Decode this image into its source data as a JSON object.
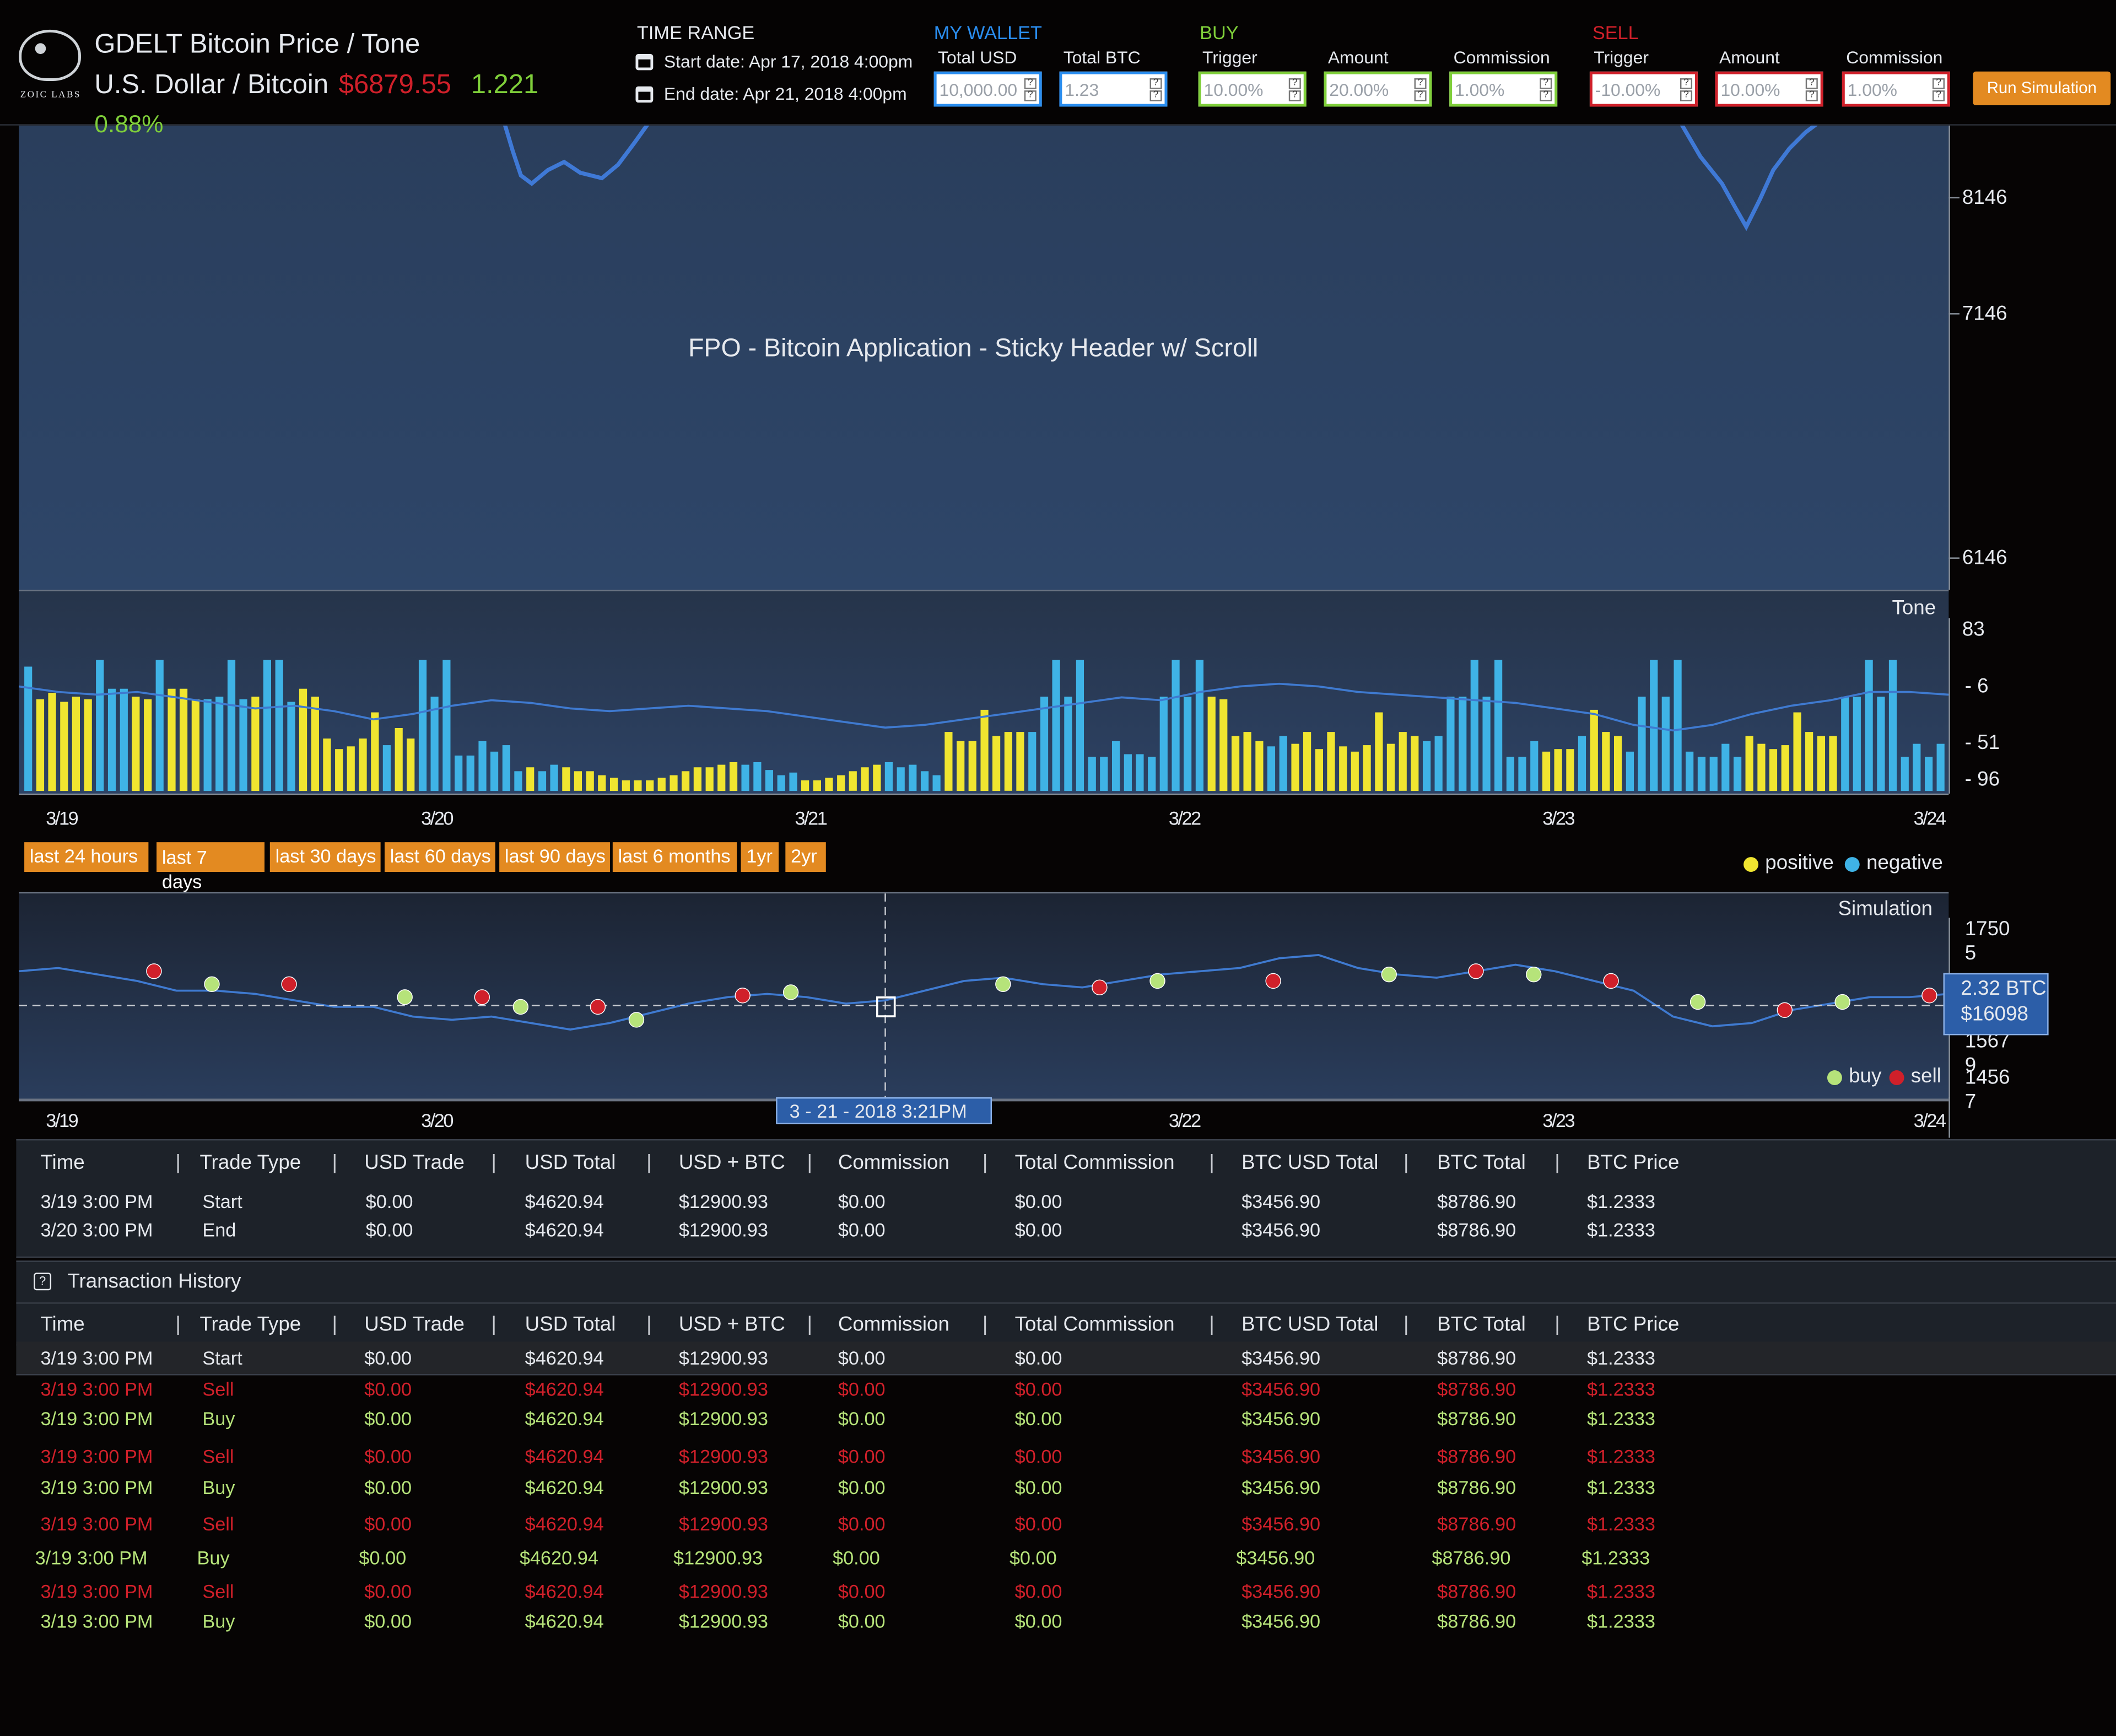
{
  "app": {
    "logo_text": "ZOIC LABS",
    "title": "GDELT Bitcoin Price / Tone",
    "pair": "U.S. Dollar / Bitcoin",
    "price": "$6879.55",
    "change": "1.221",
    "change_pct": "0.88%"
  },
  "time_range": {
    "heading": "TIME RANGE",
    "start": "Start date: Apr 17, 2018 4:00pm",
    "end": "End date:  Apr 21, 2018 4:00pm"
  },
  "wallet": {
    "heading": "MY WALLET",
    "total_usd_label": "Total USD",
    "total_usd_value": "10,000.00",
    "total_btc_label": "Total BTC",
    "total_btc_value": "1.23"
  },
  "buy": {
    "heading": "BUY",
    "trigger_label": "Trigger",
    "trigger_value": "10.00%",
    "amount_label": "Amount",
    "amount_value": "20.00%",
    "commission_label": "Commission",
    "commission_value": "1.00%"
  },
  "sell": {
    "heading": "SELL",
    "trigger_label": "Trigger",
    "trigger_value": "-10.00%",
    "amount_label": "Amount",
    "amount_value": "10.00%",
    "commission_label": "Commission",
    "commission_value": "1.00%"
  },
  "run_button": "Run Simulation",
  "colors": {
    "positive": "#f0e530",
    "negative": "#3fb3e6",
    "buy": "#b6e37a",
    "sell": "#d0202a",
    "accent_orange": "#e38a21",
    "wallet_blue": "#2a8ef0",
    "buy_green": "#7fcf3a",
    "sell_red": "#d0202a"
  },
  "price_chart": {
    "overlay_text": "FPO - Bitcoin Application - Sticky Header w/ Scroll",
    "y_ticks": [
      "8146",
      "7146",
      "6146"
    ]
  },
  "tone_chart": {
    "title": "Tone",
    "y_ticks": [
      "83",
      "- 6",
      "- 51",
      "- 96"
    ],
    "legend_positive": "positive",
    "legend_negative": "negative",
    "bars": [
      {
        "v": 0.95,
        "p": false
      },
      {
        "v": 0.7,
        "p": true
      },
      {
        "v": 0.75,
        "p": true
      },
      {
        "v": 0.68,
        "p": true
      },
      {
        "v": 0.72,
        "p": true
      },
      {
        "v": 0.7,
        "p": true
      },
      {
        "v": 1.0,
        "p": false
      },
      {
        "v": 0.78,
        "p": false
      },
      {
        "v": 0.78,
        "p": false
      },
      {
        "v": 0.72,
        "p": true
      },
      {
        "v": 0.7,
        "p": true
      },
      {
        "v": 1.0,
        "p": false
      },
      {
        "v": 0.78,
        "p": true
      },
      {
        "v": 0.78,
        "p": true
      },
      {
        "v": 0.7,
        "p": true
      },
      {
        "v": 0.7,
        "p": false
      },
      {
        "v": 0.72,
        "p": false
      },
      {
        "v": 1.0,
        "p": false
      },
      {
        "v": 0.7,
        "p": false
      },
      {
        "v": 0.72,
        "p": true
      },
      {
        "v": 1.0,
        "p": false
      },
      {
        "v": 1.0,
        "p": false
      },
      {
        "v": 0.68,
        "p": false
      },
      {
        "v": 0.78,
        "p": true
      },
      {
        "v": 0.72,
        "p": true
      },
      {
        "v": 0.4,
        "p": true
      },
      {
        "v": 0.32,
        "p": true
      },
      {
        "v": 0.34,
        "p": true
      },
      {
        "v": 0.4,
        "p": true
      },
      {
        "v": 0.6,
        "p": true
      },
      {
        "v": 0.35,
        "p": false
      },
      {
        "v": 0.48,
        "p": true
      },
      {
        "v": 0.4,
        "p": true
      },
      {
        "v": 1.0,
        "p": false
      },
      {
        "v": 0.72,
        "p": false
      },
      {
        "v": 1.0,
        "p": false
      },
      {
        "v": 0.27,
        "p": false
      },
      {
        "v": 0.27,
        "p": false
      },
      {
        "v": 0.38,
        "p": false
      },
      {
        "v": 0.3,
        "p": false
      },
      {
        "v": 0.35,
        "p": false
      },
      {
        "v": 0.15,
        "p": false
      },
      {
        "v": 0.18,
        "p": true
      },
      {
        "v": 0.15,
        "p": false
      },
      {
        "v": 0.2,
        "p": false
      },
      {
        "v": 0.18,
        "p": true
      },
      {
        "v": 0.15,
        "p": true
      },
      {
        "v": 0.15,
        "p": true
      },
      {
        "v": 0.12,
        "p": true
      },
      {
        "v": 0.1,
        "p": true
      },
      {
        "v": 0.08,
        "p": true
      },
      {
        "v": 0.08,
        "p": true
      },
      {
        "v": 0.08,
        "p": true
      },
      {
        "v": 0.1,
        "p": true
      },
      {
        "v": 0.12,
        "p": true
      },
      {
        "v": 0.15,
        "p": true
      },
      {
        "v": 0.18,
        "p": true
      },
      {
        "v": 0.18,
        "p": true
      },
      {
        "v": 0.2,
        "p": true
      },
      {
        "v": 0.22,
        "p": true
      },
      {
        "v": 0.2,
        "p": false
      },
      {
        "v": 0.22,
        "p": false
      },
      {
        "v": 0.16,
        "p": false
      },
      {
        "v": 0.12,
        "p": false
      },
      {
        "v": 0.14,
        "p": false
      },
      {
        "v": 0.08,
        "p": true
      },
      {
        "v": 0.08,
        "p": true
      },
      {
        "v": 0.1,
        "p": true
      },
      {
        "v": 0.12,
        "p": true
      },
      {
        "v": 0.15,
        "p": true
      },
      {
        "v": 0.18,
        "p": true
      },
      {
        "v": 0.2,
        "p": true
      },
      {
        "v": 0.22,
        "p": false
      },
      {
        "v": 0.18,
        "p": false
      },
      {
        "v": 0.2,
        "p": false
      },
      {
        "v": 0.15,
        "p": false
      },
      {
        "v": 0.12,
        "p": false
      },
      {
        "v": 0.45,
        "p": true
      },
      {
        "v": 0.38,
        "p": true
      },
      {
        "v": 0.38,
        "p": true
      },
      {
        "v": 0.62,
        "p": true
      },
      {
        "v": 0.42,
        "p": true
      },
      {
        "v": 0.45,
        "p": true
      },
      {
        "v": 0.45,
        "p": true
      },
      {
        "v": 0.45,
        "p": false
      },
      {
        "v": 0.72,
        "p": false
      },
      {
        "v": 1.0,
        "p": false
      },
      {
        "v": 0.72,
        "p": false
      },
      {
        "v": 1.0,
        "p": false
      },
      {
        "v": 0.26,
        "p": false
      },
      {
        "v": 0.26,
        "p": false
      },
      {
        "v": 0.38,
        "p": false
      },
      {
        "v": 0.28,
        "p": false
      },
      {
        "v": 0.28,
        "p": false
      },
      {
        "v": 0.26,
        "p": false
      },
      {
        "v": 0.72,
        "p": false
      },
      {
        "v": 1.0,
        "p": false
      },
      {
        "v": 0.72,
        "p": false
      },
      {
        "v": 1.0,
        "p": false
      },
      {
        "v": 0.72,
        "p": true
      },
      {
        "v": 0.7,
        "p": true
      },
      {
        "v": 0.42,
        "p": true
      },
      {
        "v": 0.45,
        "p": true
      },
      {
        "v": 0.38,
        "p": true
      },
      {
        "v": 0.34,
        "p": false
      },
      {
        "v": 0.42,
        "p": false
      },
      {
        "v": 0.36,
        "p": true
      },
      {
        "v": 0.45,
        "p": true
      },
      {
        "v": 0.32,
        "p": true
      },
      {
        "v": 0.45,
        "p": true
      },
      {
        "v": 0.34,
        "p": true
      },
      {
        "v": 0.3,
        "p": true
      },
      {
        "v": 0.35,
        "p": true
      },
      {
        "v": 0.6,
        "p": true
      },
      {
        "v": 0.36,
        "p": true
      },
      {
        "v": 0.45,
        "p": true
      },
      {
        "v": 0.42,
        "p": true
      },
      {
        "v": 0.38,
        "p": false
      },
      {
        "v": 0.42,
        "p": false
      },
      {
        "v": 0.72,
        "p": false
      },
      {
        "v": 0.72,
        "p": false
      },
      {
        "v": 1.0,
        "p": false
      },
      {
        "v": 0.72,
        "p": false
      },
      {
        "v": 1.0,
        "p": false
      },
      {
        "v": 0.26,
        "p": false
      },
      {
        "v": 0.26,
        "p": false
      },
      {
        "v": 0.38,
        "p": false
      },
      {
        "v": 0.3,
        "p": true
      },
      {
        "v": 0.32,
        "p": true
      },
      {
        "v": 0.32,
        "p": true
      },
      {
        "v": 0.42,
        "p": false
      },
      {
        "v": 0.62,
        "p": true
      },
      {
        "v": 0.45,
        "p": true
      },
      {
        "v": 0.42,
        "p": true
      },
      {
        "v": 0.3,
        "p": false
      },
      {
        "v": 0.72,
        "p": false
      },
      {
        "v": 1.0,
        "p": false
      },
      {
        "v": 0.72,
        "p": false
      },
      {
        "v": 1.0,
        "p": false
      },
      {
        "v": 0.3,
        "p": false
      },
      {
        "v": 0.26,
        "p": false
      },
      {
        "v": 0.26,
        "p": false
      },
      {
        "v": 0.36,
        "p": false
      },
      {
        "v": 0.26,
        "p": false
      },
      {
        "v": 0.42,
        "p": true
      },
      {
        "v": 0.36,
        "p": true
      },
      {
        "v": 0.32,
        "p": true
      },
      {
        "v": 0.35,
        "p": true
      },
      {
        "v": 0.6,
        "p": true
      },
      {
        "v": 0.45,
        "p": true
      },
      {
        "v": 0.42,
        "p": true
      },
      {
        "v": 0.42,
        "p": true
      },
      {
        "v": 0.72,
        "p": false
      },
      {
        "v": 0.72,
        "p": false
      },
      {
        "v": 1.0,
        "p": false
      },
      {
        "v": 0.72,
        "p": false
      },
      {
        "v": 1.0,
        "p": false
      },
      {
        "v": 0.26,
        "p": false
      },
      {
        "v": 0.36,
        "p": false
      },
      {
        "v": 0.26,
        "p": false
      },
      {
        "v": 0.36,
        "p": false
      }
    ],
    "line": [
      0.76,
      0.72,
      0.7,
      0.72,
      0.68,
      0.64,
      0.6,
      0.62,
      0.58,
      0.52,
      0.56,
      0.62,
      0.66,
      0.64,
      0.6,
      0.58,
      0.6,
      0.62,
      0.6,
      0.58,
      0.54,
      0.5,
      0.46,
      0.48,
      0.52,
      0.56,
      0.6,
      0.64,
      0.68,
      0.66,
      0.72,
      0.76,
      0.78,
      0.76,
      0.72,
      0.7,
      0.68,
      0.66,
      0.64,
      0.6,
      0.56,
      0.48,
      0.44,
      0.48,
      0.56,
      0.62,
      0.66,
      0.72,
      0.72,
      0.7
    ]
  },
  "x_axis_dates": [
    "3/19",
    "3/20",
    "3/21",
    "3/22",
    "3/23",
    "3/24"
  ],
  "range_buttons": [
    "last 24 hours",
    "last 7 days",
    "last 30 days",
    "last 60 days",
    "last 90 days",
    "last 6 months",
    "1yr",
    "2yr"
  ],
  "simulation_chart": {
    "title": "Simulation",
    "y_ticks": [
      "1750 5",
      "1567 9",
      "1456 7"
    ],
    "legend_buy": "buy",
    "legend_sell": "sell",
    "tooltip_btc": "2.32 BTC",
    "tooltip_usd": "$16098",
    "hover_date": "3 - 21 - 2018  3:21PM",
    "line": [
      0.62,
      0.64,
      0.6,
      0.56,
      0.5,
      0.5,
      0.48,
      0.44,
      0.4,
      0.4,
      0.34,
      0.32,
      0.34,
      0.3,
      0.26,
      0.3,
      0.36,
      0.42,
      0.46,
      0.48,
      0.46,
      0.42,
      0.44,
      0.5,
      0.56,
      0.58,
      0.54,
      0.52,
      0.56,
      0.6,
      0.62,
      0.64,
      0.7,
      0.72,
      0.64,
      0.6,
      0.58,
      0.62,
      0.66,
      0.62,
      0.56,
      0.5,
      0.34,
      0.28,
      0.3,
      0.38,
      0.42,
      0.46,
      0.46,
      0.48
    ],
    "points": [
      {
        "x": 0.07,
        "y": 0.62,
        "t": "sell"
      },
      {
        "x": 0.1,
        "y": 0.54,
        "t": "buy"
      },
      {
        "x": 0.14,
        "y": 0.54,
        "t": "sell"
      },
      {
        "x": 0.2,
        "y": 0.46,
        "t": "buy"
      },
      {
        "x": 0.24,
        "y": 0.46,
        "t": "sell"
      },
      {
        "x": 0.26,
        "y": 0.4,
        "t": "buy"
      },
      {
        "x": 0.3,
        "y": 0.4,
        "t": "sell"
      },
      {
        "x": 0.32,
        "y": 0.32,
        "t": "buy"
      },
      {
        "x": 0.375,
        "y": 0.47,
        "t": "sell"
      },
      {
        "x": 0.4,
        "y": 0.49,
        "t": "buy"
      },
      {
        "x": 0.51,
        "y": 0.54,
        "t": "buy"
      },
      {
        "x": 0.56,
        "y": 0.52,
        "t": "sell"
      },
      {
        "x": 0.59,
        "y": 0.56,
        "t": "buy"
      },
      {
        "x": 0.65,
        "y": 0.56,
        "t": "sell"
      },
      {
        "x": 0.71,
        "y": 0.6,
        "t": "buy"
      },
      {
        "x": 0.755,
        "y": 0.62,
        "t": "sell"
      },
      {
        "x": 0.785,
        "y": 0.6,
        "t": "buy"
      },
      {
        "x": 0.825,
        "y": 0.56,
        "t": "sell"
      },
      {
        "x": 0.87,
        "y": 0.43,
        "t": "buy"
      },
      {
        "x": 0.915,
        "y": 0.38,
        "t": "sell"
      },
      {
        "x": 0.945,
        "y": 0.43,
        "t": "buy"
      },
      {
        "x": 0.99,
        "y": 0.47,
        "t": "sell"
      }
    ]
  },
  "summary_table": {
    "headers": [
      "Time",
      "Trade Type",
      "USD Trade",
      "USD Total",
      "USD + BTC",
      "Commission",
      "Total Commission",
      "BTC USD Total",
      "BTC Total",
      "BTC Price"
    ],
    "rows": [
      [
        "3/19 3:00 PM",
        "Start",
        "$0.00",
        "$4620.94",
        "$12900.93",
        "$0.00",
        "$0.00",
        "$3456.90",
        "$8786.90",
        "$1.2333"
      ],
      [
        "3/20 3:00 PM",
        "End",
        "$0.00",
        "$4620.94",
        "$12900.93",
        "$0.00",
        "$0.00",
        "$3456.90",
        "$8786.90",
        "$1.2333"
      ]
    ]
  },
  "history": {
    "title": "Transaction History",
    "headers": [
      "Time",
      "Trade Type",
      "USD Trade",
      "USD Total",
      "USD + BTC",
      "Commission",
      "Total Commission",
      "BTC USD Total",
      "BTC Total",
      "BTC Price"
    ],
    "rows": [
      {
        "k": "start",
        "c": [
          "3/19 3:00 PM",
          "Start",
          "$0.00",
          "$4620.94",
          "$12900.93",
          "$0.00",
          "$0.00",
          "$3456.90",
          "$8786.90",
          "$1.2333"
        ]
      },
      {
        "k": "sell",
        "c": [
          "3/19 3:00 PM",
          "Sell",
          "$0.00",
          "$4620.94",
          "$12900.93",
          "$0.00",
          "$0.00",
          "$3456.90",
          "$8786.90",
          "$1.2333"
        ]
      },
      {
        "k": "buy",
        "c": [
          "3/19 3:00 PM",
          "Buy",
          "$0.00",
          "$4620.94",
          "$12900.93",
          "$0.00",
          "$0.00",
          "$3456.90",
          "$8786.90",
          "$1.2333"
        ]
      },
      {
        "k": "sell",
        "c": [
          "3/19 3:00 PM",
          "Sell",
          "$0.00",
          "$4620.94",
          "$12900.93",
          "$0.00",
          "$0.00",
          "$3456.90",
          "$8786.90",
          "$1.2333"
        ]
      },
      {
        "k": "buy",
        "c": [
          "3/19 3:00 PM",
          "Buy",
          "$0.00",
          "$4620.94",
          "$12900.93",
          "$0.00",
          "$0.00",
          "$3456.90",
          "$8786.90",
          "$1.2333"
        ]
      },
      {
        "k": "sell",
        "c": [
          "3/19 3:00 PM",
          "Sell",
          "$0.00",
          "$4620.94",
          "$12900.93",
          "$0.00",
          "$0.00",
          "$3456.90",
          "$8786.90",
          "$1.2333"
        ]
      },
      {
        "k": "buy",
        "c": [
          "3/19 3:00 PM",
          "Buy",
          "$0.00",
          "$4620.94",
          "$12900.93",
          "$0.00",
          "$0.00",
          "$3456.90",
          "$8786.90",
          "$1.2333"
        ]
      },
      {
        "k": "sell",
        "c": [
          "3/19 3:00 PM",
          "Sell",
          "$0.00",
          "$4620.94",
          "$12900.93",
          "$0.00",
          "$0.00",
          "$3456.90",
          "$8786.90",
          "$1.2333"
        ]
      },
      {
        "k": "buy",
        "c": [
          "3/19 3:00 PM",
          "Buy",
          "$0.00",
          "$4620.94",
          "$12900.93",
          "$0.00",
          "$0.00",
          "$3456.90",
          "$8786.90",
          "$1.2333"
        ]
      }
    ]
  }
}
